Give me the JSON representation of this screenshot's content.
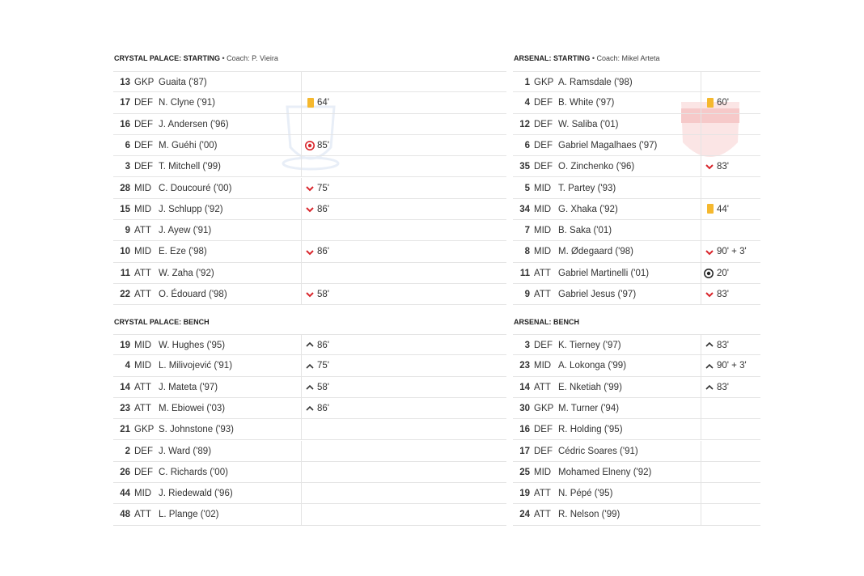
{
  "teams": [
    {
      "starting": {
        "title": "CRYSTAL PALACE: STARTING",
        "coach": "• Coach: P. Vieira",
        "rows": [
          {
            "number": 13,
            "position": "GKP",
            "name": "Guaita ('87)"
          },
          {
            "number": 17,
            "position": "DEF",
            "name": "N. Clyne ('91)",
            "minute": "64'"
          },
          {
            "number": 16,
            "position": "DEF",
            "name": "J. Andersen ('96)"
          },
          {
            "number": 6,
            "position": "DEF",
            "name": "M. Guéhi ('00)",
            "minute": "85'"
          },
          {
            "number": 3,
            "position": "DEF",
            "name": "T. Mitchell ('99)"
          },
          {
            "number": 28,
            "position": "MID",
            "name": "C. Doucouré ('00)",
            "minute": "75'"
          },
          {
            "number": 15,
            "position": "MID",
            "name": "J. Schlupp ('92)",
            "minute": "86'"
          },
          {
            "number": 9,
            "position": "ATT",
            "name": "J. Ayew ('91)"
          },
          {
            "number": 10,
            "position": "MID",
            "name": "E. Eze ('98)",
            "minute": "86'"
          },
          {
            "number": 11,
            "position": "ATT",
            "name": "W. Zaha ('92)"
          },
          {
            "number": 22,
            "position": "ATT",
            "name": "O. Édouard ('98)",
            "minute": "58'"
          }
        ]
      },
      "bench": {
        "title": "CRYSTAL PALACE: BENCH",
        "rows": [
          {
            "number": 19,
            "position": "MID",
            "name": "W. Hughes ('95)",
            "minute": "86'"
          },
          {
            "number": 4,
            "position": "MID",
            "name": "L. Milivojević ('91)",
            "minute": "75'"
          },
          {
            "number": 14,
            "position": "ATT",
            "name": "J. Mateta ('97)",
            "minute": "58'"
          },
          {
            "number": 23,
            "position": "ATT",
            "name": "M. Ebiowei ('03)",
            "minute": "86'"
          },
          {
            "number": 21,
            "position": "GKP",
            "name": "S. Johnstone ('93)"
          },
          {
            "number": 2,
            "position": "DEF",
            "name": "J. Ward ('89)"
          },
          {
            "number": 26,
            "position": "DEF",
            "name": "C. Richards ('00)"
          },
          {
            "number": 44,
            "position": "MID",
            "name": "J. Riedewald ('96)"
          },
          {
            "number": 48,
            "position": "ATT",
            "name": "L. Plange ('02)"
          }
        ]
      }
    },
    {
      "starting": {
        "title": "ARSENAL: STARTING",
        "coach": "• Coach: Mikel Arteta",
        "rows": [
          {
            "number": 1,
            "position": "GKP",
            "name": "A. Ramsdale ('98)"
          },
          {
            "number": 4,
            "position": "DEF",
            "name": "B. White ('97)",
            "minute": "60'"
          },
          {
            "number": 12,
            "position": "DEF",
            "name": "W. Saliba ('01)"
          },
          {
            "number": 6,
            "position": "DEF",
            "name": "Gabriel Magalhaes ('97)"
          },
          {
            "number": 35,
            "position": "DEF",
            "name": "O. Zinchenko ('96)",
            "minute": "83'"
          },
          {
            "number": 5,
            "position": "MID",
            "name": "T. Partey ('93)"
          },
          {
            "number": 34,
            "position": "MID",
            "name": "G. Xhaka ('92)",
            "minute": "44'"
          },
          {
            "number": 7,
            "position": "MID",
            "name": "B. Saka ('01)"
          },
          {
            "number": 8,
            "position": "MID",
            "name": "M. Ødegaard ('98)",
            "minute": "90' + 3'"
          },
          {
            "number": 11,
            "position": "ATT",
            "name": "Gabriel Martinelli ('01)",
            "minute": "20'"
          },
          {
            "number": 9,
            "position": "ATT",
            "name": "Gabriel Jesus ('97)",
            "minute": "83'"
          }
        ]
      },
      "bench": {
        "title": "ARSENAL: BENCH",
        "rows": [
          {
            "number": 3,
            "position": "DEF",
            "name": "K. Tierney ('97)",
            "minute": "83'"
          },
          {
            "number": 23,
            "position": "MID",
            "name": "A. Lokonga ('99)",
            "minute": "90' + 3'"
          },
          {
            "number": 14,
            "position": "ATT",
            "name": "E. Nketiah ('99)",
            "minute": "83'"
          },
          {
            "number": 30,
            "position": "GKP",
            "name": "M. Turner ('94)"
          },
          {
            "number": 16,
            "position": "DEF",
            "name": "R. Holding ('95)"
          },
          {
            "number": 17,
            "position": "DEF",
            "name": "Cédric Soares ('91)"
          },
          {
            "number": 25,
            "position": "MID",
            "name": "Mohamed Elneny ('92)"
          },
          {
            "number": 19,
            "position": "ATT",
            "name": "N. Pépé ('95)"
          },
          {
            "number": 24,
            "position": "ATT",
            "name": "R. Nelson ('99)"
          }
        ]
      }
    }
  ]
}
